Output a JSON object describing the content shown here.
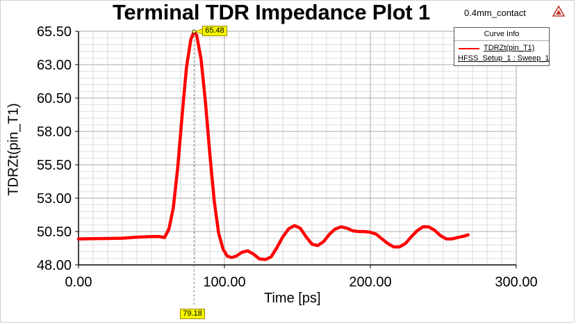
{
  "title": "Terminal TDR Impedance Plot 1",
  "subtitle": "0.4mm_contact",
  "logo_icon": "ansys-triangle-icon",
  "legend": {
    "header": "Curve Info",
    "series_name": "TDRZt(pin_T1)",
    "setup": "HFSS_Setup_1 : Sweep_1"
  },
  "marker": {
    "y_label": "65.48",
    "x_label": "79.18",
    "x": 79.18,
    "y": 65.48
  },
  "colors": {
    "series": "#ff0000",
    "marker_fill": "#f5f500",
    "grid": "#d8d8d8"
  },
  "chart_data": {
    "type": "line",
    "title": "Terminal TDR Impedance Plot 1",
    "xlabel": "Time [ps]",
    "ylabel": "TDRZt(pin_T1)",
    "xlim": [
      0,
      300
    ],
    "ylim": [
      48,
      65.5
    ],
    "x_ticks": [
      "0.00",
      "100.00",
      "200.00",
      "300.00"
    ],
    "y_ticks": [
      "48.00",
      "50.50",
      "53.00",
      "55.50",
      "58.00",
      "60.50",
      "63.00",
      "65.50"
    ],
    "grid": true,
    "legend_position": "top-right",
    "series": [
      {
        "name": "TDRZt(pin_T1)",
        "x": [
          0,
          10,
          20,
          30,
          40,
          50,
          55,
          59,
          62,
          65,
          68,
          71,
          74,
          77,
          79.18,
          81,
          84,
          87,
          90,
          93,
          96,
          99,
          102,
          105,
          108,
          112,
          116,
          120,
          124,
          128,
          132,
          136,
          140,
          144,
          148,
          152,
          156,
          160,
          164,
          168,
          172,
          176,
          180,
          184,
          188,
          192,
          196,
          200,
          204,
          208,
          212,
          216,
          220,
          224,
          228,
          232,
          236,
          240,
          244,
          248,
          252,
          256,
          260,
          264,
          267
        ],
        "y": [
          49.95,
          49.97,
          49.98,
          50.0,
          50.08,
          50.12,
          50.13,
          50.05,
          50.7,
          52.3,
          55.3,
          59.2,
          62.8,
          64.9,
          65.48,
          65.2,
          63.4,
          60.2,
          56.3,
          52.8,
          50.4,
          49.2,
          48.65,
          48.55,
          48.65,
          48.95,
          49.05,
          48.8,
          48.45,
          48.4,
          48.6,
          49.3,
          50.1,
          50.7,
          50.95,
          50.75,
          50.1,
          49.55,
          49.45,
          49.75,
          50.3,
          50.7,
          50.85,
          50.75,
          50.55,
          50.5,
          50.5,
          50.45,
          50.3,
          49.95,
          49.6,
          49.35,
          49.35,
          49.6,
          50.1,
          50.55,
          50.85,
          50.85,
          50.6,
          50.2,
          49.95,
          49.95,
          50.05,
          50.15,
          50.25
        ]
      }
    ]
  }
}
